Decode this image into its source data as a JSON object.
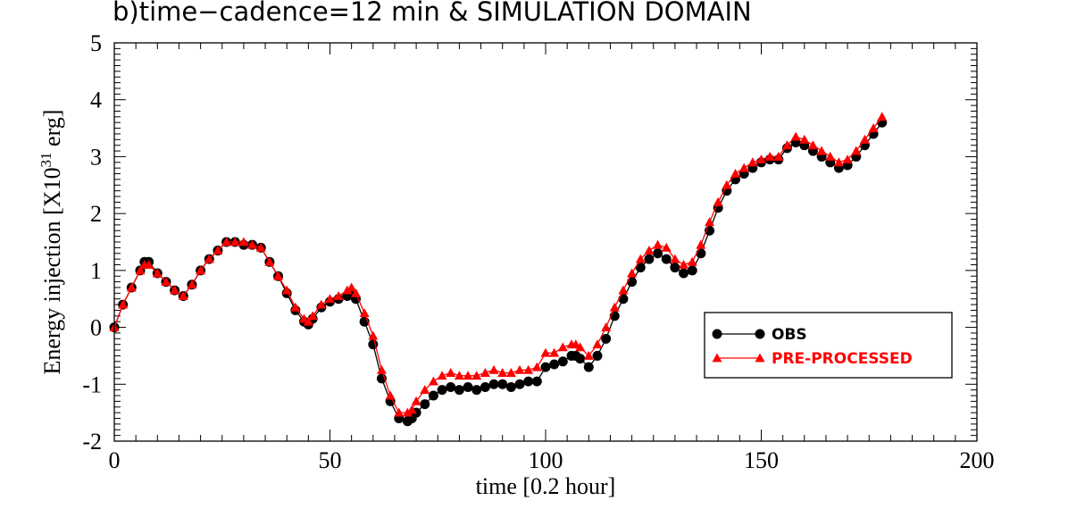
{
  "chart_data": {
    "type": "line",
    "title": "b)time−cadence=12 min & SIMULATION DOMAIN",
    "xlabel": "time [0.2 hour]",
    "ylabel": "Energy injection [X10^31 erg]",
    "ylabel_main": "Energy injection [X10",
    "ylabel_exp": "31",
    "ylabel_tail": " erg]",
    "xlim": [
      0,
      200
    ],
    "ylim": [
      -2,
      5
    ],
    "xticks": [
      0,
      50,
      100,
      150,
      200
    ],
    "yticks": [
      -2,
      -1,
      0,
      1,
      2,
      3,
      4,
      5
    ],
    "xtick_labels": [
      "0",
      "50",
      "100",
      "150",
      "200"
    ],
    "ytick_labels": [
      "-2",
      "-1",
      "0",
      "1",
      "2",
      "3",
      "4",
      "5"
    ],
    "grid": false,
    "legend_position": "lower-right",
    "series": [
      {
        "name": "OBS",
        "color": "#000000",
        "marker": "circle",
        "x": [
          0,
          2,
          4,
          6,
          7,
          8,
          10,
          12,
          14,
          16,
          18,
          20,
          22,
          24,
          26,
          28,
          30,
          32,
          34,
          36,
          38,
          40,
          42,
          44,
          45,
          46,
          48,
          50,
          52,
          54,
          55,
          56,
          58,
          60,
          62,
          64,
          66,
          68,
          69,
          70,
          72,
          74,
          76,
          78,
          80,
          82,
          84,
          86,
          88,
          90,
          92,
          94,
          96,
          98,
          100,
          102,
          104,
          106,
          107,
          108,
          110,
          112,
          114,
          116,
          118,
          120,
          122,
          124,
          126,
          128,
          130,
          132,
          134,
          136,
          138,
          140,
          142,
          144,
          146,
          148,
          150,
          152,
          154,
          156,
          158,
          160,
          162,
          164,
          166,
          168,
          170,
          172,
          174,
          176,
          178
        ],
        "y": [
          0.0,
          0.4,
          0.7,
          1.0,
          1.15,
          1.15,
          0.95,
          0.8,
          0.65,
          0.55,
          0.75,
          1.0,
          1.2,
          1.35,
          1.5,
          1.5,
          1.45,
          1.45,
          1.4,
          1.15,
          0.9,
          0.6,
          0.3,
          0.1,
          0.05,
          0.15,
          0.35,
          0.45,
          0.5,
          0.55,
          0.6,
          0.5,
          0.1,
          -0.3,
          -0.9,
          -1.3,
          -1.6,
          -1.65,
          -1.6,
          -1.5,
          -1.35,
          -1.2,
          -1.1,
          -1.05,
          -1.1,
          -1.05,
          -1.1,
          -1.05,
          -1.0,
          -1.0,
          -1.05,
          -1.0,
          -0.95,
          -0.95,
          -0.7,
          -0.65,
          -0.6,
          -0.5,
          -0.5,
          -0.55,
          -0.7,
          -0.5,
          -0.2,
          0.2,
          0.5,
          0.8,
          1.05,
          1.2,
          1.3,
          1.2,
          1.05,
          0.95,
          1.0,
          1.3,
          1.7,
          2.1,
          2.4,
          2.6,
          2.7,
          2.8,
          2.9,
          2.95,
          2.95,
          3.15,
          3.25,
          3.2,
          3.1,
          3.0,
          2.9,
          2.8,
          2.85,
          3.0,
          3.2,
          3.4,
          3.6
        ]
      },
      {
        "name": "PRE-PROCESSED",
        "color": "#ff0000",
        "marker": "triangle",
        "x": [
          0,
          2,
          4,
          6,
          7,
          8,
          10,
          12,
          14,
          16,
          18,
          20,
          22,
          24,
          26,
          28,
          30,
          32,
          34,
          36,
          38,
          40,
          42,
          44,
          45,
          46,
          48,
          50,
          52,
          54,
          55,
          56,
          58,
          60,
          62,
          64,
          66,
          68,
          69,
          70,
          72,
          74,
          76,
          78,
          80,
          82,
          84,
          86,
          88,
          90,
          92,
          94,
          96,
          98,
          100,
          102,
          104,
          106,
          107,
          108,
          110,
          112,
          114,
          116,
          118,
          120,
          122,
          124,
          126,
          128,
          130,
          132,
          134,
          136,
          138,
          140,
          142,
          144,
          146,
          148,
          150,
          152,
          154,
          156,
          158,
          160,
          162,
          164,
          166,
          168,
          170,
          172,
          174,
          176,
          178
        ],
        "y": [
          0.0,
          0.4,
          0.7,
          1.0,
          1.1,
          1.1,
          0.95,
          0.8,
          0.65,
          0.55,
          0.75,
          1.0,
          1.2,
          1.35,
          1.5,
          1.5,
          1.5,
          1.45,
          1.4,
          1.15,
          0.9,
          0.65,
          0.35,
          0.15,
          0.1,
          0.2,
          0.4,
          0.5,
          0.55,
          0.65,
          0.7,
          0.6,
          0.25,
          -0.15,
          -0.75,
          -1.2,
          -1.5,
          -1.5,
          -1.45,
          -1.3,
          -1.1,
          -0.95,
          -0.85,
          -0.8,
          -0.85,
          -0.85,
          -0.85,
          -0.8,
          -0.75,
          -0.8,
          -0.8,
          -0.75,
          -0.75,
          -0.7,
          -0.45,
          -0.45,
          -0.35,
          -0.3,
          -0.3,
          -0.35,
          -0.5,
          -0.3,
          0.0,
          0.35,
          0.65,
          0.95,
          1.2,
          1.35,
          1.45,
          1.4,
          1.2,
          1.1,
          1.15,
          1.45,
          1.85,
          2.2,
          2.5,
          2.7,
          2.8,
          2.9,
          2.95,
          3.0,
          3.0,
          3.2,
          3.35,
          3.3,
          3.2,
          3.1,
          3.0,
          2.9,
          2.95,
          3.1,
          3.3,
          3.5,
          3.7
        ]
      }
    ]
  }
}
